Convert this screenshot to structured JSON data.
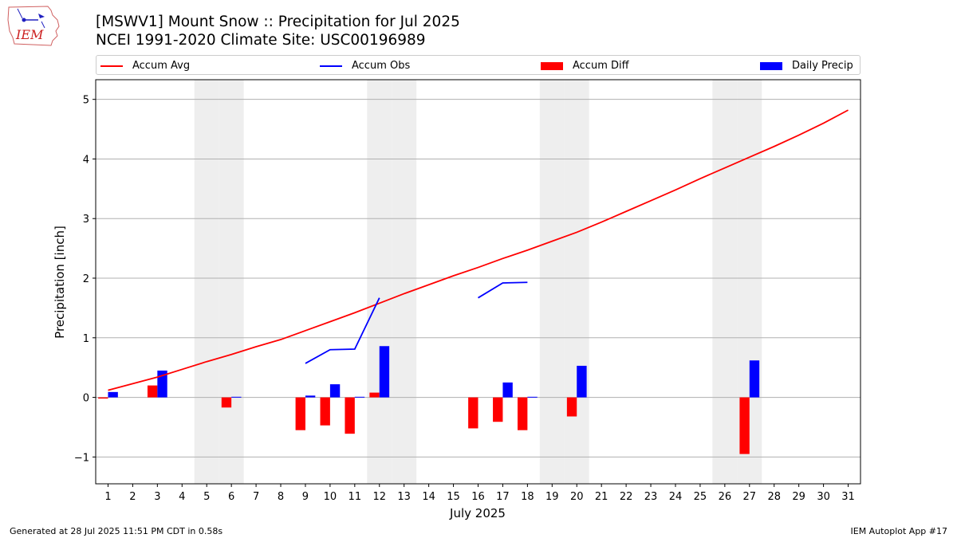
{
  "logo": {
    "text": "IEM"
  },
  "header": {
    "title": "[MSWV1] Mount Snow :: Precipitation for Jul 2025",
    "subtitle": "NCEI 1991-2020 Climate Site: USC00196989"
  },
  "footer": {
    "generated": "Generated at 28 Jul 2025 11:51 PM CDT in 0.58s",
    "app": "IEM Autoplot App #17"
  },
  "colors": {
    "avg": "#ff0000",
    "obs": "#0000ff",
    "diff": "#ff0000",
    "daily": "#0000ff",
    "weekend": "#eeeeee",
    "grid": "#b0b0b0"
  },
  "chart_data": {
    "type": "bar",
    "xlabel": "July 2025",
    "ylabel": "Precipitation [inch]",
    "ylim": [
      -1.45,
      5.33
    ],
    "xlim": [
      0.5,
      31.5
    ],
    "yticks": [
      -1,
      0,
      1,
      2,
      3,
      4,
      5
    ],
    "ytick_labels": [
      "−1",
      "0",
      "1",
      "2",
      "3",
      "4",
      "5"
    ],
    "x": [
      1,
      2,
      3,
      4,
      5,
      6,
      7,
      8,
      9,
      10,
      11,
      12,
      13,
      14,
      15,
      16,
      17,
      18,
      19,
      20,
      21,
      22,
      23,
      24,
      25,
      26,
      27,
      28,
      29,
      30,
      31
    ],
    "xtick_labels": [
      "1",
      "2",
      "3",
      "4",
      "5",
      "6",
      "7",
      "8",
      "9",
      "10",
      "11",
      "12",
      "13",
      "14",
      "15",
      "16",
      "17",
      "18",
      "19",
      "20",
      "21",
      "22",
      "23",
      "24",
      "25",
      "26",
      "27",
      "28",
      "29",
      "30",
      "31"
    ],
    "grid": "horizontal",
    "legend": {
      "position": "top",
      "entries": [
        "Accum Avg",
        "Accum Obs",
        "Accum Diff",
        "Daily Precip"
      ]
    },
    "weekend_days": [
      5,
      6,
      12,
      13,
      19,
      20,
      26,
      27
    ],
    "series": [
      {
        "name": "Accum Avg",
        "type": "line",
        "values": [
          0.12,
          0.23,
          0.34,
          0.47,
          0.6,
          0.72,
          0.85,
          0.97,
          1.12,
          1.27,
          1.42,
          1.58,
          1.74,
          1.89,
          2.04,
          2.18,
          2.33,
          2.47,
          2.62,
          2.77,
          2.94,
          3.12,
          3.3,
          3.48,
          3.67,
          3.85,
          4.03,
          4.21,
          4.4,
          4.6,
          4.82
        ]
      },
      {
        "name": "Accum Obs",
        "type": "line",
        "segments": [
          {
            "x": [
              9,
              10,
              11,
              12
            ],
            "values": [
              0.57,
              0.8,
              0.81,
              1.67
            ]
          },
          {
            "x": [
              16,
              17,
              18
            ],
            "values": [
              1.67,
              1.92,
              1.93
            ]
          }
        ]
      },
      {
        "name": "Accum Diff",
        "type": "bar",
        "x": [
          1,
          3,
          6,
          9,
          10,
          11,
          12,
          16,
          17,
          18,
          20,
          27
        ],
        "values": [
          -0.02,
          0.2,
          -0.17,
          -0.55,
          -0.47,
          -0.61,
          0.08,
          -0.52,
          -0.41,
          -0.55,
          -0.32,
          -0.95
        ]
      },
      {
        "name": "Daily Precip",
        "type": "bar",
        "x": [
          1,
          3,
          6,
          9,
          10,
          11,
          12,
          17,
          18,
          20,
          27
        ],
        "values": [
          0.09,
          0.45,
          0.01,
          0.03,
          0.22,
          0.01,
          0.86,
          0.25,
          0.01,
          0.53,
          0.62
        ]
      }
    ]
  }
}
